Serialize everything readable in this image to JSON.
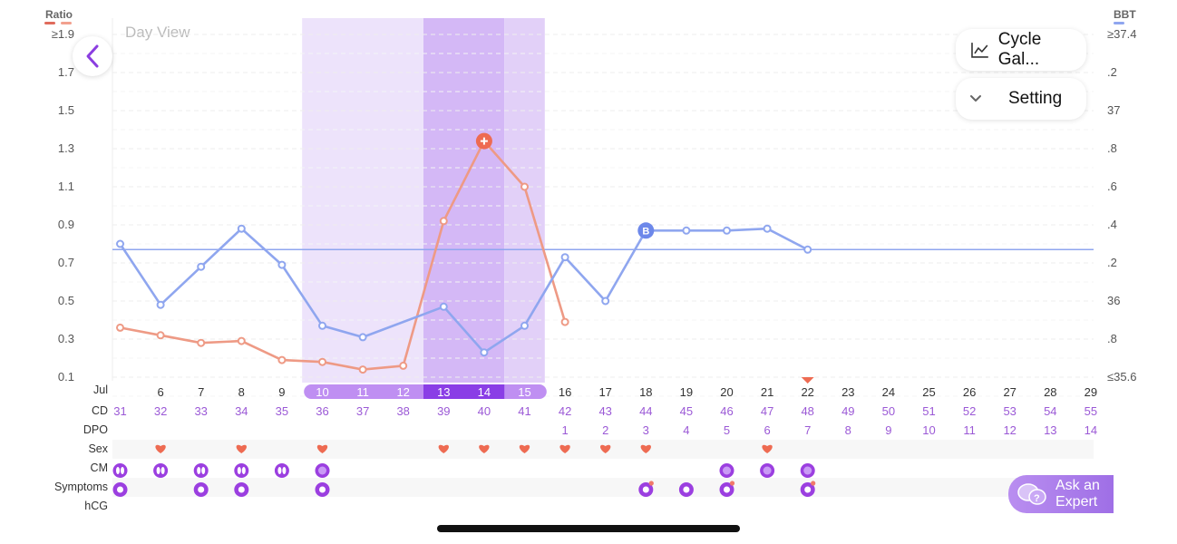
{
  "header": {
    "left_axis_title": "Ratio",
    "right_axis_title": "BBT",
    "view_label": "Day View",
    "ratio_legend_color": "#e8806a",
    "bbt_legend_color": "#8fa6ef"
  },
  "buttons": {
    "back_icon": "chevron-left-icon",
    "cycle_gallery_label": "Cycle Gal...",
    "cycle_gallery_icon": "line-chart-icon",
    "setting_label": "Setting",
    "setting_icon": "chevron-down-icon",
    "ask_expert_line1": "Ask an",
    "ask_expert_line2": "Expert",
    "ask_expert_icon": "chat-question-icon"
  },
  "left_axis_ticks": [
    "≥1.9",
    "1.7",
    "1.5",
    "1.3",
    "1.1",
    "0.9",
    "0.7",
    "0.5",
    "0.3",
    "0.1"
  ],
  "right_axis_ticks": [
    "≥37.4",
    ".2",
    "37",
    ".8",
    ".6",
    ".4",
    ".2",
    "36",
    ".8",
    "≤35.6"
  ],
  "month_label": "Jul",
  "row_labels": [
    "CD",
    "DPO",
    "Sex",
    "CM",
    "Symptoms",
    "hCG"
  ],
  "days": [
    "",
    "6",
    "7",
    "8",
    "9",
    "10",
    "11",
    "12",
    "13",
    "14",
    "15",
    "16",
    "17",
    "18",
    "19",
    "20",
    "21",
    "22",
    "23",
    "24",
    "25",
    "26",
    "27",
    "28",
    "29"
  ],
  "cd": [
    "31",
    "32",
    "33",
    "34",
    "35",
    "36",
    "37",
    "38",
    "39",
    "40",
    "41",
    "42",
    "43",
    "44",
    "45",
    "46",
    "47",
    "48",
    "49",
    "50",
    "51",
    "52",
    "53",
    "54",
    "55"
  ],
  "dpo": [
    "",
    "",
    "",
    "",
    "",
    "",
    "",
    "",
    "",
    "",
    "",
    "1",
    "2",
    "3",
    "4",
    "5",
    "6",
    "7",
    "8",
    "9",
    "10",
    "11",
    "12",
    "13",
    "14"
  ],
  "sex": [
    false,
    true,
    false,
    true,
    false,
    true,
    false,
    false,
    true,
    true,
    true,
    true,
    true,
    true,
    false,
    false,
    true,
    false,
    false,
    false,
    false,
    false,
    false,
    false,
    false
  ],
  "cm": [
    true,
    true,
    true,
    true,
    true,
    true,
    false,
    false,
    false,
    false,
    false,
    false,
    false,
    false,
    false,
    true,
    true,
    true,
    false,
    false,
    false,
    false,
    false,
    false,
    false
  ],
  "symptoms": [
    true,
    false,
    true,
    true,
    false,
    true,
    false,
    false,
    false,
    false,
    false,
    false,
    false,
    true,
    true,
    true,
    false,
    true,
    false,
    false,
    false,
    false,
    false,
    false,
    false
  ],
  "fertile_window": {
    "light": [
      5,
      7
    ],
    "peak": [
      8,
      9
    ],
    "post": [
      10,
      10
    ]
  },
  "highlighted_day": "22",
  "chart_data": {
    "type": "line",
    "x": [
      "5",
      "6",
      "7",
      "8",
      "9",
      "10",
      "11",
      "12",
      "13",
      "14",
      "15",
      "16",
      "17",
      "18",
      "19",
      "20",
      "21",
      "22"
    ],
    "series": [
      {
        "name": "Ratio",
        "axis": "left",
        "color": "#ee9a85",
        "values": [
          0.36,
          0.32,
          0.28,
          0.29,
          0.19,
          0.18,
          0.14,
          0.16,
          0.92,
          1.34,
          1.1,
          0.39,
          null,
          null,
          null,
          null,
          null,
          null
        ],
        "peak_index": 9
      },
      {
        "name": "BBT",
        "axis": "right",
        "color": "#8fa6ef",
        "values": [
          36.3,
          35.98,
          36.18,
          36.38,
          36.19,
          35.87,
          35.81,
          null,
          35.97,
          35.73,
          35.87,
          36.23,
          36.0,
          36.37,
          36.37,
          36.37,
          36.38,
          36.27
        ],
        "marked_index": 13,
        "marked_label": "B"
      }
    ],
    "left_ylim": [
      0.1,
      1.9
    ],
    "right_ylim": [
      35.6,
      37.4
    ],
    "cover_line": 36.27,
    "grid": true
  }
}
